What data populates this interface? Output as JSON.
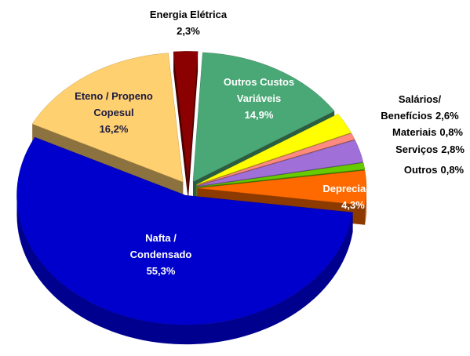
{
  "chart_data": {
    "type": "pie3d",
    "categories": [
      [
        "Energia Elétrica"
      ],
      [
        "Outros Custos",
        "Variáveis"
      ],
      [
        "Salários/",
        "Benefícios"
      ],
      [
        "Materiais"
      ],
      [
        "Serviços"
      ],
      [
        "Outros"
      ],
      [
        "Depreciação"
      ],
      [
        "Nafta /",
        "Condensado"
      ],
      [
        "Eteno / Propeno",
        "Copesul"
      ]
    ],
    "values": [
      2.3,
      14.9,
      2.6,
      0.8,
      2.8,
      0.8,
      4.3,
      55.3,
      16.2
    ],
    "value_labels": [
      "2,3%",
      "14,9%",
      "2,6%",
      "0,8%",
      "2,8%",
      "0,8%",
      "4,3%",
      "55,3%",
      "16,2%"
    ],
    "colors": [
      "#8b0000",
      "#4aa876",
      "#ffff00",
      "#ff8a80",
      "#a070d8",
      "#66cc00",
      "#ff6a00",
      "#0000cc",
      "#ffd070"
    ]
  }
}
